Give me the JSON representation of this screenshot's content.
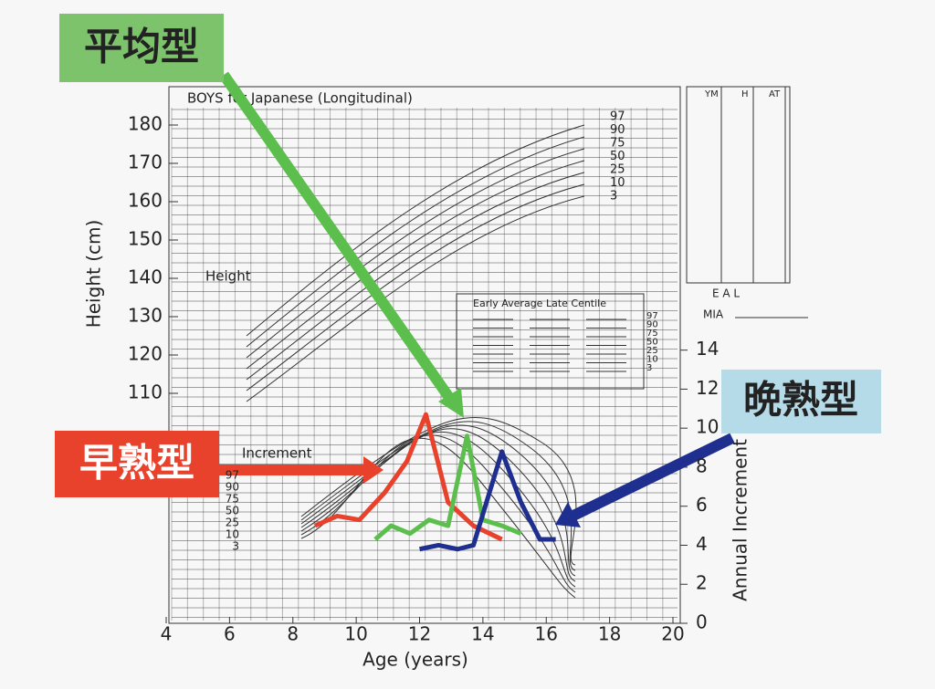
{
  "chart_data": {
    "type": "line",
    "title": "BOYS for Japanese (Longitudinal)",
    "xlabel": "Age (years)",
    "ylabel": "Height (cm)",
    "y2label": "Annual Increment",
    "xlim": [
      4,
      20
    ],
    "xticks": [
      4,
      6,
      8,
      10,
      12,
      14,
      16,
      18,
      20
    ],
    "ylim": [
      50,
      190
    ],
    "yticks": [
      110,
      120,
      130,
      140,
      150,
      160,
      170,
      180
    ],
    "y2lim": [
      0,
      27.5
    ],
    "y2ticks": [
      0,
      2,
      4,
      6,
      8,
      10,
      12,
      14
    ],
    "panel_labels": [
      "Height",
      "Increment"
    ],
    "legend_header": "Early Average Late Centile",
    "centiles": [
      97,
      90,
      75,
      50,
      25,
      10,
      3
    ],
    "table_headers": [
      "YM",
      "H",
      "AT"
    ],
    "side_labels": [
      "E A L",
      "MIA"
    ],
    "series": [
      {
        "name": "早熟型",
        "color": "#e8412c",
        "axis": "y2",
        "x": [
          8.7,
          9.4,
          10.1,
          10.9,
          11.6,
          12.2,
          12.9,
          13.7,
          14.6
        ],
        "values": [
          5.0,
          5.5,
          5.3,
          6.7,
          8.3,
          10.7,
          6.2,
          5.0,
          4.3
        ]
      },
      {
        "name": "平均型",
        "color": "#5cbf4d",
        "axis": "y2",
        "x": [
          10.6,
          11.1,
          11.7,
          12.3,
          12.9,
          13.5,
          14.0,
          14.6,
          15.2
        ],
        "values": [
          4.3,
          5.0,
          4.6,
          5.3,
          5.0,
          9.6,
          5.3,
          5.0,
          4.6
        ]
      },
      {
        "name": "晩熟型",
        "color": "#1f2f8f",
        "axis": "y2",
        "x": [
          12.0,
          12.6,
          13.2,
          13.7,
          14.6,
          15.2,
          15.8,
          16.3
        ],
        "values": [
          3.8,
          4.0,
          3.8,
          4.0,
          8.8,
          6.2,
          4.3,
          4.3
        ]
      }
    ]
  }
}
